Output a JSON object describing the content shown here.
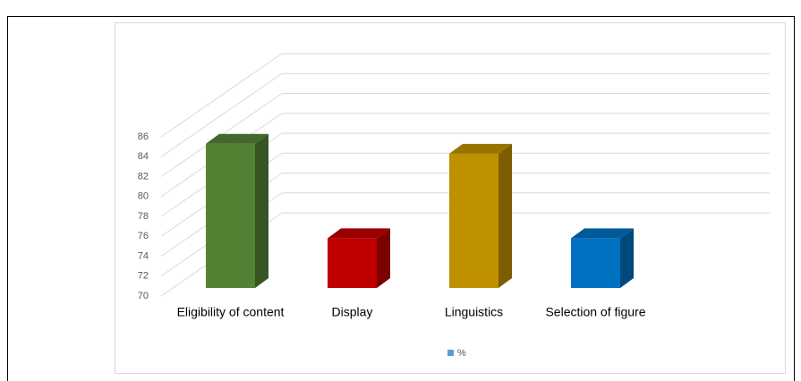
{
  "chart_data": {
    "type": "bar3d",
    "categories": [
      "Eligibility of content",
      "Display",
      "Linguistics",
      "Selection of figure"
    ],
    "series": [
      {
        "name": "%",
        "color": "#5b9bd5",
        "colors": [
          "#548235",
          "#c00000",
          "#bf9000",
          "#0070c0"
        ],
        "values": [
          84.5,
          75,
          83.5,
          75
        ]
      }
    ],
    "ylim": [
      70,
      86
    ],
    "yticks": [
      70,
      72,
      74,
      76,
      78,
      80,
      82,
      84,
      86
    ],
    "grid": true,
    "legend": "bottom"
  }
}
